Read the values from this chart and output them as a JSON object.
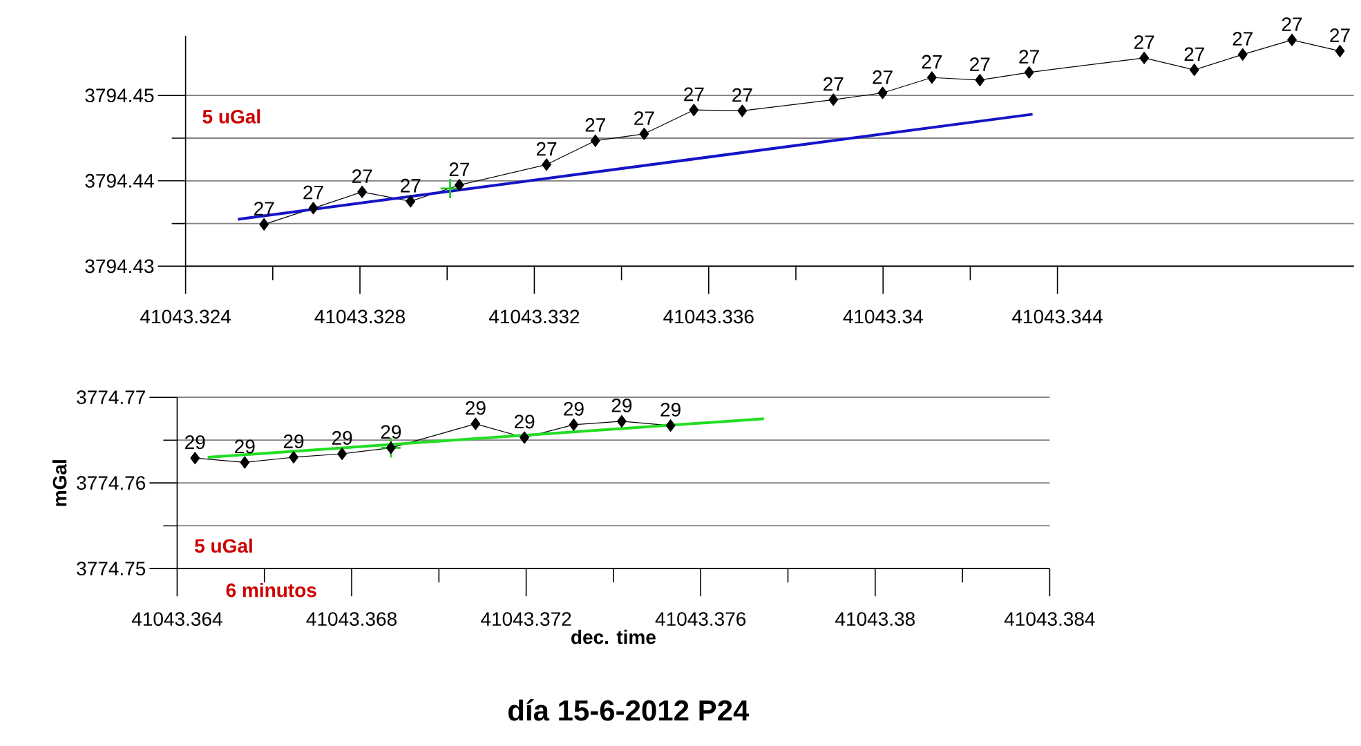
{
  "chart_data": [
    {
      "type": "line",
      "grid": "y",
      "annotations": [
        "5 uGal",
        {
          "text": "27",
          "x": 41043.3258,
          "y": 3794.4349
        },
        {
          "text": "27",
          "x": 41043.32693,
          "y": 3794.4368
        },
        {
          "text": "27",
          "x": 41043.32805,
          "y": 3794.4387
        },
        {
          "text": "27",
          "x": 41043.32916,
          "y": 3794.4376
        },
        {
          "text": "27",
          "x": 41043.33028,
          "y": 3794.4395
        },
        {
          "text": "27",
          "x": 41043.33228,
          "y": 3794.4419
        },
        {
          "text": "27",
          "x": 41043.3334,
          "y": 3794.4447
        },
        {
          "text": "27",
          "x": 41043.33452,
          "y": 3794.4455
        },
        {
          "text": "27",
          "x": 41043.33566,
          "y": 3794.4483
        },
        {
          "text": "27",
          "x": 41043.33677,
          "y": 3794.4482
        },
        {
          "text": "27",
          "x": 41043.33886,
          "y": 3794.4495
        },
        {
          "text": "27",
          "x": 41043.33999,
          "y": 3794.4503
        },
        {
          "text": "27",
          "x": 41043.34112,
          "y": 3794.4521
        },
        {
          "text": "27",
          "x": 41043.34222,
          "y": 3794.4518
        },
        {
          "text": "27",
          "x": 41043.34335,
          "y": 3794.4527
        },
        {
          "text": "27",
          "x": 41043.34599,
          "y": 3794.4544
        },
        {
          "text": "27",
          "x": 41043.34714,
          "y": 3794.453
        },
        {
          "text": "27",
          "x": 41043.34825,
          "y": 3794.4548
        },
        {
          "text": "27",
          "x": 41043.34938,
          "y": 3794.4565
        },
        {
          "text": "27",
          "x": 41043.35048,
          "y": 3794.4552
        }
      ],
      "xlim": [
        41043.324,
        41043.3508
      ],
      "ylim": [
        3794.43,
        3794.457
      ],
      "xticks": [
        41043.324,
        {
          "value": 41043.326,
          "label": null
        },
        41043.328,
        {
          "value": 41043.33,
          "label": null
        },
        41043.332,
        {
          "value": 41043.334,
          "label": null
        },
        41043.336,
        {
          "value": 41043.338,
          "label": null
        },
        41043.34,
        {
          "value": 41043.342,
          "label": null
        },
        41043.344
      ],
      "yticks": [
        3794.43,
        {
          "value": 3794.435,
          "label": null
        },
        3794.44,
        {
          "value": 3794.445,
          "label": null
        },
        3794.45
      ],
      "series": [
        {
          "marker": "diamond",
          "color": "#000000",
          "x": [
            41043.3258,
            41043.32693,
            41043.32805,
            41043.32916,
            41043.33028,
            41043.33228,
            41043.3334,
            41043.33452,
            41043.33566,
            41043.33677,
            41043.33886,
            41043.33999,
            41043.34112,
            41043.34222,
            41043.34335,
            41043.34599,
            41043.34714,
            41043.34825,
            41043.34938,
            41043.35048
          ],
          "values": [
            3794.4349,
            3794.4368,
            3794.4387,
            3794.4376,
            3794.4395,
            3794.4419,
            3794.4447,
            3794.4455,
            3794.4483,
            3794.4482,
            3794.4495,
            3794.4503,
            3794.4521,
            3794.4518,
            3794.4527,
            3794.4544,
            3794.453,
            3794.4548,
            3794.4565,
            3794.4552
          ]
        },
        {
          "marker": "none",
          "color": "#1414c8",
          "x": [
            41043.3252,
            41043.34343
          ],
          "values": [
            3794.4355,
            3794.4478
          ]
        },
        {
          "type": "scatter",
          "marker": "cross",
          "color": "#22cc22",
          "x": [
            41043.33007
          ],
          "values": [
            3794.4391
          ]
        }
      ]
    },
    {
      "type": "line",
      "grid": "y",
      "title": "día 15-6-2012  P24",
      "xlabel": "dec. time",
      "ylabel": "mGal",
      "annotations": [
        "5 uGal",
        "6 minutos",
        {
          "text": "29",
          "x": 41043.36441,
          "y": 3774.7629
        },
        {
          "text": "29",
          "x": 41043.36555,
          "y": 3774.7624
        },
        {
          "text": "29",
          "x": 41043.36667,
          "y": 3774.763
        },
        {
          "text": "29",
          "x": 41043.36778,
          "y": 3774.7634
        },
        {
          "text": "29",
          "x": 41043.3689,
          "y": 3774.7641
        },
        {
          "text": "29",
          "x": 41043.37084,
          "y": 3774.7669
        },
        {
          "text": "29",
          "x": 41043.37196,
          "y": 3774.7653
        },
        {
          "text": "29",
          "x": 41043.37309,
          "y": 3774.7668
        },
        {
          "text": "29",
          "x": 41043.37419,
          "y": 3774.7672
        },
        {
          "text": "29",
          "x": 41043.37531,
          "y": 3774.7667
        }
      ],
      "xlim": [
        41043.364,
        41043.384
      ],
      "ylim": [
        3774.75,
        3774.77
      ],
      "xticks": [
        41043.364,
        {
          "value": 41043.366,
          "label": null
        },
        41043.368,
        {
          "value": 41043.37,
          "label": null
        },
        41043.372,
        {
          "value": 41043.374,
          "label": null
        },
        41043.376,
        {
          "value": 41043.378,
          "label": null
        },
        41043.38,
        {
          "value": 41043.382,
          "label": null
        },
        41043.384
      ],
      "yticks": [
        3774.75,
        {
          "value": 3774.755,
          "label": null
        },
        3774.76,
        {
          "value": 3774.765,
          "label": null
        },
        3774.77
      ],
      "series": [
        {
          "marker": "diamond",
          "color": "#000000",
          "x": [
            41043.36441,
            41043.36555,
            41043.36667,
            41043.36778,
            41043.3689,
            41043.37084,
            41043.37196,
            41043.37309,
            41043.37419,
            41043.37531
          ],
          "values": [
            3774.7629,
            3774.7624,
            3774.763,
            3774.7634,
            3774.7641,
            3774.7669,
            3774.7653,
            3774.7668,
            3774.7672,
            3774.7667
          ]
        },
        {
          "marker": "none",
          "color": "#22dd22",
          "x": [
            41043.3647,
            41043.37745
          ],
          "values": [
            3774.763,
            3774.7675
          ]
        },
        {
          "type": "scatter",
          "marker": "cross",
          "color": "#22cc22",
          "x": [
            41043.3689
          ],
          "values": [
            3774.7641
          ]
        }
      ]
    }
  ]
}
